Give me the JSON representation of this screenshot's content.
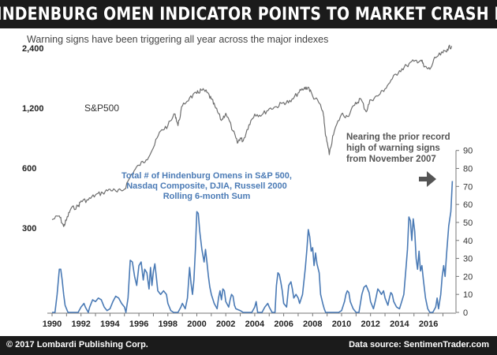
{
  "header": {
    "title": "HINDENBURG OMEN INDICATOR POINTS TO MARKET CRASH IN"
  },
  "subtitle": "Warning signs have been triggering all year across the major indexes",
  "footer": {
    "left": "© 2017 Lombardi Publishing Corp.",
    "right": "Data source: SentimenTrader.com"
  },
  "colors": {
    "sp500": "#6e6e6e",
    "omens": "#4a7ab5",
    "arrow": "#555555",
    "bar": "#1b1b1b"
  },
  "chart_data": [
    {
      "type": "line",
      "series": [
        {
          "name": "S&P500",
          "x_unit": "year",
          "y_scale": "log",
          "points": [
            [
              1990.0,
              330
            ],
            [
              1990.5,
              345
            ],
            [
              1990.8,
              305
            ],
            [
              1991.0,
              330
            ],
            [
              1991.3,
              375
            ],
            [
              1991.8,
              385
            ],
            [
              1992.0,
              410
            ],
            [
              1992.5,
              415
            ],
            [
              1993.0,
              440
            ],
            [
              1993.5,
              450
            ],
            [
              1994.0,
              470
            ],
            [
              1994.5,
              455
            ],
            [
              1995.0,
              470
            ],
            [
              1995.5,
              560
            ],
            [
              1996.0,
              620
            ],
            [
              1996.5,
              660
            ],
            [
              1997.0,
              760
            ],
            [
              1997.5,
              920
            ],
            [
              1998.0,
              980
            ],
            [
              1998.5,
              1120
            ],
            [
              1998.7,
              980
            ],
            [
              1999.0,
              1230
            ],
            [
              1999.5,
              1350
            ],
            [
              2000.0,
              1420
            ],
            [
              2000.3,
              1480
            ],
            [
              2000.7,
              1440
            ],
            [
              2001.0,
              1330
            ],
            [
              2001.3,
              1200
            ],
            [
              2001.7,
              1040
            ],
            [
              2002.0,
              1130
            ],
            [
              2002.5,
              920
            ],
            [
              2002.8,
              800
            ],
            [
              2003.0,
              850
            ],
            [
              2003.2,
              820
            ],
            [
              2003.6,
              990
            ],
            [
              2004.0,
              1120
            ],
            [
              2004.5,
              1110
            ],
            [
              2005.0,
              1190
            ],
            [
              2005.5,
              1220
            ],
            [
              2006.0,
              1280
            ],
            [
              2006.5,
              1290
            ],
            [
              2007.0,
              1430
            ],
            [
              2007.4,
              1500
            ],
            [
              2007.7,
              1530
            ],
            [
              2008.0,
              1380
            ],
            [
              2008.5,
              1260
            ],
            [
              2008.75,
              1100
            ],
            [
              2008.9,
              870
            ],
            [
              2009.15,
              700
            ],
            [
              2009.5,
              920
            ],
            [
              2010.0,
              1120
            ],
            [
              2010.4,
              1090
            ],
            [
              2010.9,
              1240
            ],
            [
              2011.3,
              1340
            ],
            [
              2011.7,
              1150
            ],
            [
              2012.0,
              1320
            ],
            [
              2012.5,
              1380
            ],
            [
              2013.0,
              1500
            ],
            [
              2013.5,
              1680
            ],
            [
              2014.0,
              1850
            ],
            [
              2014.5,
              1960
            ],
            [
              2015.0,
              2060
            ],
            [
              2015.5,
              2090
            ],
            [
              2015.7,
              1930
            ],
            [
              2016.1,
              1880
            ],
            [
              2016.5,
              2150
            ],
            [
              2017.0,
              2270
            ],
            [
              2017.3,
              2370
            ],
            [
              2017.6,
              2460
            ]
          ]
        }
      ],
      "axis": {
        "y_scale": "log",
        "y_ticks": [
          300,
          600,
          1200,
          2400
        ],
        "y_tick_labels": [
          "300",
          "600",
          "1,200",
          "2,400"
        ]
      },
      "label": "S&P500"
    },
    {
      "type": "line",
      "series": [
        {
          "name": "Total # of Hindenburg Omens in S&P 500, Nasdaq Composite, DJIA, Russell 2000 Rolling 6-month Sum",
          "x_unit": "year",
          "points": [
            [
              1990.0,
              0
            ],
            [
              1990.2,
              0
            ],
            [
              1990.35,
              10
            ],
            [
              1990.5,
              24
            ],
            [
              1990.6,
              24
            ],
            [
              1990.7,
              18
            ],
            [
              1990.8,
              10
            ],
            [
              1990.9,
              4
            ],
            [
              1991.0,
              2
            ],
            [
              1991.1,
              0
            ],
            [
              1991.8,
              0
            ],
            [
              1992.0,
              3
            ],
            [
              1992.2,
              5
            ],
            [
              1992.3,
              3
            ],
            [
              1992.5,
              0
            ],
            [
              1992.6,
              3
            ],
            [
              1992.8,
              7
            ],
            [
              1993.0,
              6
            ],
            [
              1993.2,
              8
            ],
            [
              1993.4,
              7
            ],
            [
              1993.5,
              5
            ],
            [
              1993.6,
              3
            ],
            [
              1993.8,
              1
            ],
            [
              1994.0,
              2
            ],
            [
              1994.2,
              6
            ],
            [
              1994.4,
              9
            ],
            [
              1994.6,
              8
            ],
            [
              1994.8,
              5
            ],
            [
              1995.0,
              3
            ],
            [
              1995.1,
              0
            ],
            [
              1995.25,
              8
            ],
            [
              1995.4,
              29
            ],
            [
              1995.55,
              28
            ],
            [
              1995.7,
              20
            ],
            [
              1995.85,
              15
            ],
            [
              1996.0,
              26
            ],
            [
              1996.15,
              28
            ],
            [
              1996.3,
              18
            ],
            [
              1996.4,
              24
            ],
            [
              1996.55,
              22
            ],
            [
              1996.7,
              13
            ],
            [
              1996.8,
              25
            ],
            [
              1996.9,
              15
            ],
            [
              1997.0,
              23
            ],
            [
              1997.1,
              27
            ],
            [
              1997.2,
              20
            ],
            [
              1997.3,
              12
            ],
            [
              1997.5,
              10
            ],
            [
              1997.7,
              12
            ],
            [
              1997.9,
              10
            ],
            [
              1998.0,
              5
            ],
            [
              1998.2,
              1
            ],
            [
              1998.4,
              0
            ],
            [
              1998.7,
              0
            ],
            [
              1998.9,
              3
            ],
            [
              1999.0,
              5
            ],
            [
              1999.2,
              2
            ],
            [
              1999.35,
              8
            ],
            [
              1999.5,
              25
            ],
            [
              1999.6,
              16
            ],
            [
              1999.7,
              10
            ],
            [
              1999.8,
              18
            ],
            [
              1999.9,
              35
            ],
            [
              2000.0,
              56
            ],
            [
              2000.1,
              55
            ],
            [
              2000.2,
              45
            ],
            [
              2000.35,
              35
            ],
            [
              2000.5,
              28
            ],
            [
              2000.6,
              35
            ],
            [
              2000.7,
              28
            ],
            [
              2000.8,
              20
            ],
            [
              2000.9,
              14
            ],
            [
              2001.0,
              10
            ],
            [
              2001.2,
              5
            ],
            [
              2001.4,
              2
            ],
            [
              2001.5,
              8
            ],
            [
              2001.6,
              12
            ],
            [
              2001.7,
              7
            ],
            [
              2001.8,
              13
            ],
            [
              2001.9,
              12
            ],
            [
              2002.0,
              6
            ],
            [
              2002.2,
              3
            ],
            [
              2002.3,
              7
            ],
            [
              2002.4,
              10
            ],
            [
              2002.5,
              9
            ],
            [
              2002.6,
              4
            ],
            [
              2002.7,
              2
            ],
            [
              2003.0,
              1
            ],
            [
              2003.2,
              0
            ],
            [
              2003.8,
              0
            ],
            [
              2004.0,
              3
            ],
            [
              2004.1,
              6
            ],
            [
              2004.2,
              0
            ],
            [
              2004.5,
              0
            ],
            [
              2004.7,
              3
            ],
            [
              2004.9,
              5
            ],
            [
              2005.0,
              3
            ],
            [
              2005.2,
              0
            ],
            [
              2005.4,
              0
            ],
            [
              2005.5,
              15
            ],
            [
              2005.6,
              22
            ],
            [
              2005.7,
              21
            ],
            [
              2005.8,
              17
            ],
            [
              2005.9,
              12
            ],
            [
              2006.0,
              5
            ],
            [
              2006.2,
              3
            ],
            [
              2006.35,
              15
            ],
            [
              2006.5,
              17
            ],
            [
              2006.6,
              13
            ],
            [
              2006.7,
              8
            ],
            [
              2006.85,
              10
            ],
            [
              2007.0,
              8
            ],
            [
              2007.1,
              5
            ],
            [
              2007.3,
              10
            ],
            [
              2007.5,
              25
            ],
            [
              2007.6,
              35
            ],
            [
              2007.7,
              46
            ],
            [
              2007.8,
              42
            ],
            [
              2007.9,
              34
            ],
            [
              2008.0,
              36
            ],
            [
              2008.1,
              26
            ],
            [
              2008.2,
              33
            ],
            [
              2008.3,
              27
            ],
            [
              2008.45,
              22
            ],
            [
              2008.55,
              10
            ],
            [
              2008.7,
              5
            ],
            [
              2008.8,
              2
            ],
            [
              2008.9,
              0
            ],
            [
              2009.8,
              0
            ],
            [
              2010.0,
              1
            ],
            [
              2010.2,
              6
            ],
            [
              2010.3,
              10
            ],
            [
              2010.4,
              12
            ],
            [
              2010.5,
              11
            ],
            [
              2010.6,
              6
            ],
            [
              2010.8,
              2
            ],
            [
              2011.0,
              0
            ],
            [
              2011.2,
              0
            ],
            [
              2011.4,
              10
            ],
            [
              2011.55,
              14
            ],
            [
              2011.7,
              15
            ],
            [
              2011.8,
              13
            ],
            [
              2011.9,
              11
            ],
            [
              2012.0,
              6
            ],
            [
              2012.2,
              2
            ],
            [
              2012.35,
              7
            ],
            [
              2012.5,
              13
            ],
            [
              2012.6,
              12
            ],
            [
              2012.75,
              10
            ],
            [
              2012.9,
              12
            ],
            [
              2013.0,
              8
            ],
            [
              2013.2,
              4
            ],
            [
              2013.3,
              8
            ],
            [
              2013.4,
              11
            ],
            [
              2013.5,
              10
            ],
            [
              2013.6,
              6
            ],
            [
              2013.8,
              3
            ],
            [
              2014.0,
              2
            ],
            [
              2014.15,
              6
            ],
            [
              2014.3,
              10
            ],
            [
              2014.45,
              25
            ],
            [
              2014.55,
              35
            ],
            [
              2014.65,
              53
            ],
            [
              2014.75,
              51
            ],
            [
              2014.85,
              40
            ],
            [
              2014.95,
              52
            ],
            [
              2015.05,
              45
            ],
            [
              2015.15,
              30
            ],
            [
              2015.25,
              24
            ],
            [
              2015.35,
              34
            ],
            [
              2015.45,
              23
            ],
            [
              2015.55,
              26
            ],
            [
              2015.65,
              18
            ],
            [
              2015.8,
              8
            ],
            [
              2015.95,
              2
            ],
            [
              2016.1,
              0
            ],
            [
              2016.3,
              0
            ],
            [
              2016.5,
              3
            ],
            [
              2016.6,
              8
            ],
            [
              2016.7,
              2
            ],
            [
              2016.85,
              10
            ],
            [
              2016.95,
              20
            ],
            [
              2017.05,
              26
            ],
            [
              2017.15,
              20
            ],
            [
              2017.25,
              32
            ],
            [
              2017.4,
              48
            ],
            [
              2017.55,
              56
            ],
            [
              2017.65,
              73
            ]
          ]
        }
      ],
      "axis": {
        "y_min": 0,
        "y_max": 90,
        "y_ticks": [
          0,
          10,
          20,
          30,
          40,
          50,
          60,
          70,
          80,
          90
        ]
      },
      "label_lines": [
        "Total # of Hindenburg Omens in S&P 500,",
        "Nasdaq Composite, DJIA, Russell 2000",
        "Rolling 6-month Sum"
      ]
    }
  ],
  "x_axis": {
    "ticks": [
      1990,
      1992,
      1994,
      1996,
      1998,
      2000,
      2002,
      2004,
      2006,
      2008,
      2010,
      2012,
      2014,
      2016
    ]
  },
  "annotation": {
    "lines": [
      "Nearing the prior record",
      "high of warning signs",
      "from November 2007"
    ]
  }
}
